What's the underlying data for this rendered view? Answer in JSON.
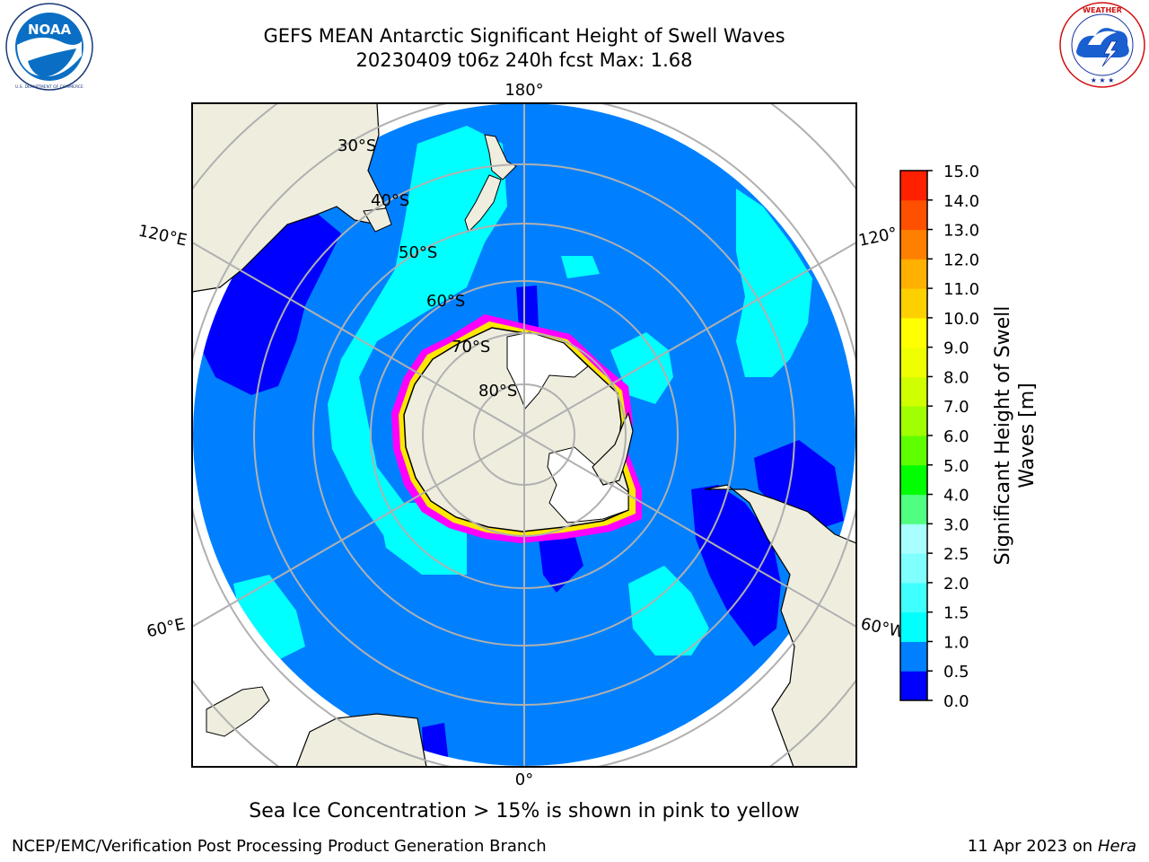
{
  "header": {
    "title_line1": "GEFS MEAN Antarctic Significant Height of Swell Waves",
    "title_line2": "20230409 t06z 240h fcst   Max: 1.68"
  },
  "logos": {
    "left": {
      "icon": "noaa-logo-icon",
      "text": "NOAA",
      "ring_text": "NATIONAL OCEANIC AND ATMOSPHERIC ADMINISTRATION · U.S. DEPARTMENT OF COMMERCE"
    },
    "right": {
      "icon": "nws-logo-icon",
      "ring_text": "NATIONAL WEATHER SERVICE"
    }
  },
  "map": {
    "projection": "south-polar-stereographic",
    "lon_labels": {
      "top": "180°",
      "bottom": "0°",
      "upper_left": "120°E",
      "lower_left": "60°E",
      "upper_right": "120°",
      "lower_right": "60°W"
    },
    "lat_labels": [
      "30°S",
      "40°S",
      "50°S",
      "60°S",
      "70°S",
      "80°S"
    ],
    "colors": {
      "ocean_low": "#0080ff",
      "swell_0_05": "#0000ff",
      "swell_1_15": "#00ffff",
      "land": "#efedde",
      "ice_shelf": "#ffffff",
      "sea_ice_edge": "#ff00ff",
      "gridline": "#b0b0b0"
    }
  },
  "chart_data": {
    "type": "heatmap",
    "title": "GEFS MEAN Antarctic Significant Height of Swell Waves",
    "max_value": 1.68,
    "colorbar": {
      "label": "Significant Height of Swell Waves [m]",
      "ticks": [
        "0.0",
        "0.5",
        "1.0",
        "1.5",
        "2.0",
        "2.5",
        "3.0",
        "4.0",
        "5.0",
        "6.0",
        "7.0",
        "8.0",
        "9.0",
        "10.0",
        "11.0",
        "12.0",
        "13.0",
        "14.0",
        "15.0"
      ],
      "colors": [
        "#0000ff",
        "#0080ff",
        "#00ffff",
        "#40ffff",
        "#80ffff",
        "#a8ffff",
        "#50ff80",
        "#00ff00",
        "#60ff00",
        "#a0ff00",
        "#d0ff00",
        "#f0ff00",
        "#ffff00",
        "#ffd000",
        "#ffb000",
        "#ff8000",
        "#ff5000",
        "#ff2000",
        "#ff0000"
      ]
    }
  },
  "footer": {
    "caption": "Sea Ice Concentration > 15% is shown in pink to yellow",
    "left": "NCEP/EMC/Verification Post Processing Product Generation Branch",
    "right_prefix": "11 Apr 2023 on ",
    "right_host": "Hera"
  }
}
